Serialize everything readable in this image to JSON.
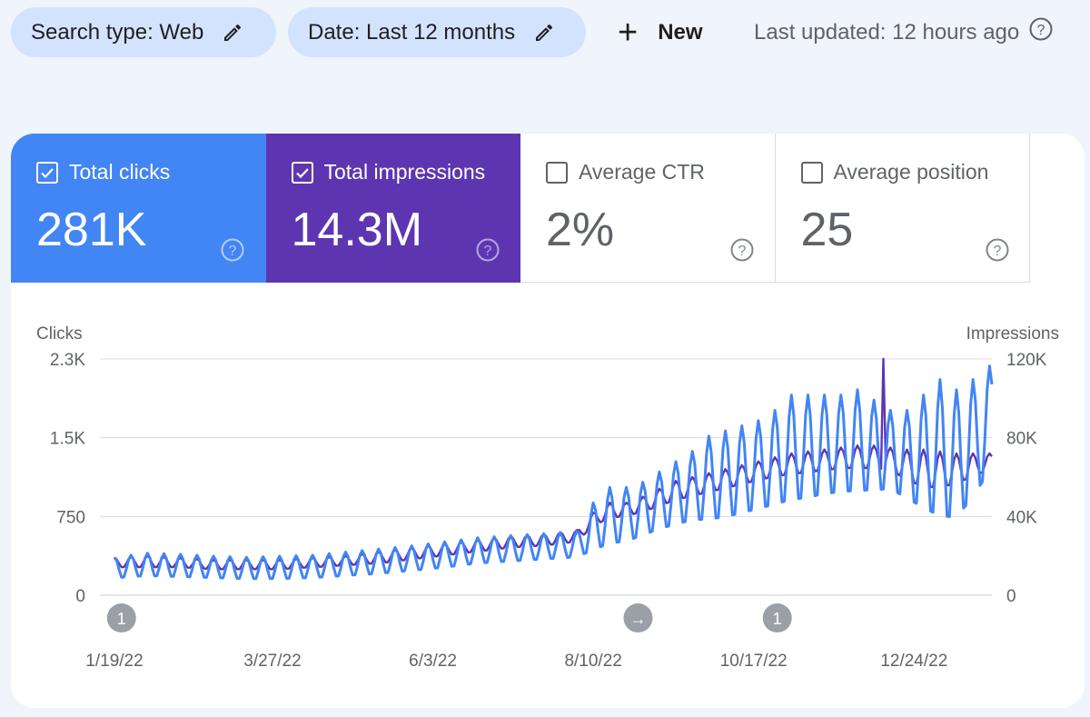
{
  "toolbar": {
    "search_type_chip": "Search type: Web",
    "date_chip": "Date: Last 12 months",
    "new_button": "New",
    "last_updated": "Last updated: 12 hours ago"
  },
  "metrics": [
    {
      "label": "Total clicks",
      "value": "281K",
      "checked": true,
      "color": "#4285f4"
    },
    {
      "label": "Total impressions",
      "value": "14.3M",
      "checked": true,
      "color": "#5e35b1"
    },
    {
      "label": "Average CTR",
      "value": "2%",
      "checked": false
    },
    {
      "label": "Average position",
      "value": "25",
      "checked": false
    }
  ],
  "colors": {
    "clicks": "#4285f4",
    "impressions": "#5e35b1",
    "grid": "#dadce0",
    "annotation": "#9aa0a6"
  },
  "chart_data": {
    "type": "line",
    "title": "",
    "left_axis": {
      "label": "Clicks",
      "ticks": [
        "0",
        "750",
        "1.5K",
        "2.3K"
      ],
      "ylim": [
        0,
        2300
      ]
    },
    "right_axis": {
      "label": "Impressions",
      "ticks": [
        "0",
        "40K",
        "80K",
        "120K"
      ],
      "ylim": [
        0,
        120000
      ]
    },
    "x_tick_labels": [
      "1/19/22",
      "3/27/22",
      "6/3/22",
      "8/10/22",
      "10/17/22",
      "12/24/22"
    ],
    "x_range_days": 372,
    "x_tick_days": [
      0,
      67,
      135,
      203,
      271,
      339
    ],
    "annotations": [
      {
        "day": 3,
        "text": "1"
      },
      {
        "day": 222,
        "text": "→"
      },
      {
        "day": 281,
        "text": "1"
      }
    ],
    "series": [
      {
        "name": "Clicks",
        "axis": "left",
        "color": "#4285f4",
        "x": [
          0,
          14,
          28,
          42,
          56,
          70,
          84,
          98,
          112,
          126,
          140,
          154,
          168,
          182,
          196,
          203,
          210,
          217,
          224,
          231,
          238,
          245,
          252,
          259,
          266,
          273,
          280,
          287,
          294,
          301,
          308,
          315,
          322,
          329,
          336,
          343,
          350,
          357,
          364,
          372
        ],
        "peaks": [
          370,
          410,
          400,
          380,
          370,
          380,
          390,
          420,
          450,
          480,
          520,
          560,
          580,
          600,
          620,
          900,
          1050,
          1050,
          1100,
          1200,
          1300,
          1400,
          1550,
          1600,
          1650,
          1700,
          1800,
          1950,
          1950,
          1950,
          1950,
          2000,
          1900,
          1800,
          1800,
          1950,
          2100,
          2000,
          2100,
          2250
        ],
        "troughs": [
          160,
          180,
          170,
          160,
          150,
          150,
          160,
          180,
          200,
          230,
          260,
          300,
          320,
          340,
          360,
          420,
          480,
          500,
          560,
          620,
          660,
          700,
          700,
          720,
          760,
          800,
          840,
          880,
          900,
          940,
          960,
          970,
          980,
          1000,
          900,
          800,
          700,
          700,
          900,
          1200
        ]
      },
      {
        "name": "Impressions",
        "axis": "right",
        "color": "#5e35b1",
        "x": [
          0,
          14,
          28,
          42,
          56,
          70,
          84,
          98,
          112,
          126,
          140,
          154,
          168,
          182,
          196,
          203,
          210,
          217,
          224,
          231,
          238,
          245,
          252,
          259,
          266,
          273,
          280,
          287,
          294,
          301,
          308,
          315,
          322,
          329,
          336,
          343,
          350,
          357,
          364,
          372
        ],
        "peaks": [
          19000,
          20000,
          19000,
          18000,
          18000,
          18000,
          19000,
          20000,
          22000,
          24000,
          26000,
          28000,
          30000,
          31000,
          33000,
          42000,
          47000,
          47000,
          50000,
          54000,
          58000,
          60000,
          62000,
          64000,
          66000,
          68000,
          70000,
          72000,
          73000,
          74000,
          75000,
          76000,
          76000,
          75000,
          74000,
          74000,
          73000,
          72000,
          72000,
          72000
        ],
        "troughs": [
          14000,
          14000,
          14000,
          13000,
          13000,
          13000,
          14000,
          15000,
          16000,
          18000,
          20000,
          22000,
          24000,
          25000,
          27000,
          35000,
          39000,
          40000,
          42000,
          45000,
          48000,
          50000,
          52000,
          54000,
          56000,
          58000,
          60000,
          61000,
          62000,
          63000,
          64000,
          64000,
          64000,
          63000,
          58000,
          54000,
          54000,
          56000,
          60000,
          64000
        ],
        "spike": {
          "day": 326,
          "value": 120000
        }
      }
    ]
  }
}
